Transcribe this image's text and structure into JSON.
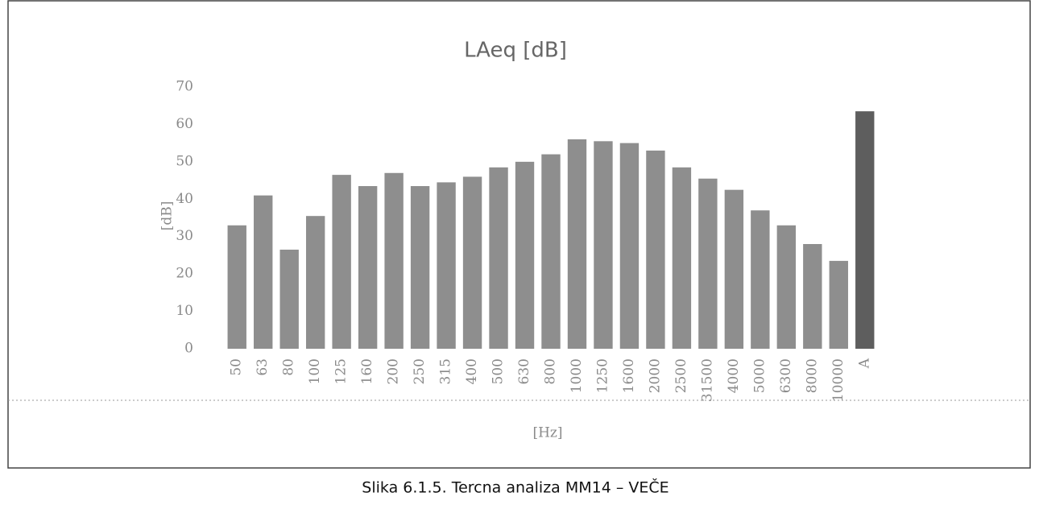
{
  "chart_data": {
    "type": "bar",
    "title": "LAeq [dB]",
    "x_label": "[Hz]",
    "y_label": "[dB]",
    "categories": [
      "50",
      "63",
      "80",
      "100",
      "125",
      "160",
      "200",
      "250",
      "315",
      "400",
      "500",
      "630",
      "800",
      "1000",
      "1250",
      "1600",
      "2000",
      "2500",
      "31500",
      "4000",
      "5000",
      "6300",
      "8000",
      "10000",
      "A"
    ],
    "values": [
      33,
      41,
      26.5,
      35.5,
      46.5,
      43.5,
      47,
      43.5,
      44.5,
      46,
      48.5,
      50,
      52,
      56,
      55.5,
      55,
      53,
      48.5,
      45.5,
      42.5,
      37,
      33,
      28,
      23.5,
      63.5
    ],
    "colors": [
      "#8e8e8e",
      "#8e8e8e",
      "#8e8e8e",
      "#8e8e8e",
      "#8e8e8e",
      "#8e8e8e",
      "#8e8e8e",
      "#8e8e8e",
      "#8e8e8e",
      "#8e8e8e",
      "#8e8e8e",
      "#8e8e8e",
      "#8e8e8e",
      "#8e8e8e",
      "#8e8e8e",
      "#8e8e8e",
      "#8e8e8e",
      "#8e8e8e",
      "#8e8e8e",
      "#8e8e8e",
      "#8e8e8e",
      "#8e8e8e",
      "#8e8e8e",
      "#8e8e8e",
      "#5e5e5e"
    ],
    "ylim": [
      0,
      70
    ],
    "yticks": [
      0,
      10,
      20,
      30,
      40,
      50,
      60,
      70
    ],
    "grid": false
  },
  "caption": "Slika 6.1.5. Tercna analiza MM14 – VEČE"
}
